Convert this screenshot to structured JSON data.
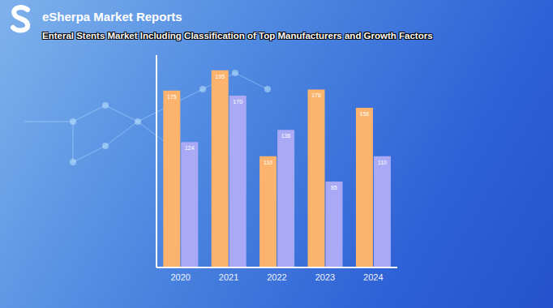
{
  "chart_data": {
    "type": "bar",
    "subtitle": "eSherpa Market Reports",
    "title": "Enteral Stents Market Including Classification of Top Manufacturers and Growth Factors",
    "categories": [
      "2020",
      "2021",
      "2022",
      "2023",
      "2024"
    ],
    "series": [
      {
        "color": "#fbb36e",
        "values": [
          175,
          195,
          110,
          176,
          158
        ]
      },
      {
        "color": "#a9a9f5",
        "values": [
          124,
          170,
          136,
          85,
          110
        ]
      }
    ],
    "ylim": [
      0,
      210
    ],
    "data_labels": true,
    "tick_labels": "x",
    "grid": false
  }
}
